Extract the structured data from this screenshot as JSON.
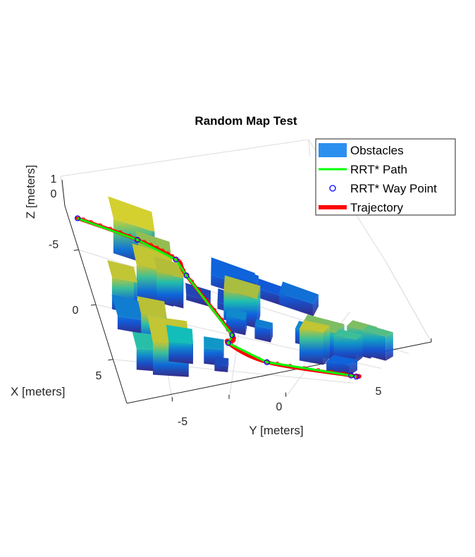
{
  "chart_data": {
    "type": "3d-scene",
    "title": "Random Map Test",
    "xlabel": "X [meters]",
    "ylabel": "Y [meters]",
    "zlabel": "Z [meters]",
    "x_ticks": [
      "-5",
      "0",
      "5"
    ],
    "y_ticks": [
      "-5",
      "0",
      "5"
    ],
    "z_ticks": [
      "1",
      "0"
    ],
    "grid": true,
    "legend_position": "top-right",
    "legend": [
      {
        "label": "Obstacles",
        "color": "#2b8ff0",
        "kind": "patch"
      },
      {
        "label": "RRT* Path",
        "color": "#00ff00",
        "kind": "line"
      },
      {
        "label": "RRT* Way Point",
        "color": "#0000ff",
        "kind": "circle"
      },
      {
        "label": "Trajectory",
        "color": "#ff0000",
        "kind": "thick-line"
      }
    ],
    "waypoints": [
      {
        "x": -8.2,
        "y": -8.5,
        "z": 0
      },
      {
        "x": -8.2,
        "y": -5.5,
        "z": 0
      },
      {
        "x": -7.5,
        "y": -3.6,
        "z": 0
      },
      {
        "x": -6.0,
        "y": -3.1,
        "z": 0
      },
      {
        "x": 0.0,
        "y": -0.4,
        "z": 0
      },
      {
        "x": 1.2,
        "y": -0.6,
        "z": 0
      },
      {
        "x": 3.0,
        "y": 2.2,
        "z": 0
      },
      {
        "x": 3.1,
        "y": 8.1,
        "z": 0
      },
      {
        "x": 3.2,
        "y": 8.5,
        "z": 0
      }
    ],
    "obstacles": [
      {
        "x": -8.0,
        "y": -7.0,
        "w": 2.2,
        "d": 2.2,
        "h": 5.2
      },
      {
        "x": -4.0,
        "y": -6.2,
        "w": 2.2,
        "d": 2.2,
        "h": 4.8
      },
      {
        "x": -3.5,
        "y": -5.0,
        "w": 1.6,
        "d": 1.6,
        "h": 4.5
      },
      {
        "x": -1.5,
        "y": -8.0,
        "w": 1.6,
        "d": 1.6,
        "h": 4.8
      },
      {
        "x": 0.0,
        "y": -8.0,
        "w": 2.0,
        "d": 2.0,
        "h": 2.0
      },
      {
        "x": 1.4,
        "y": -6.6,
        "w": 1.8,
        "d": 1.8,
        "h": 4.6
      },
      {
        "x": 3.4,
        "y": -6.2,
        "w": 2.8,
        "d": 2.8,
        "h": 4.8
      },
      {
        "x": 4.2,
        "y": -7.4,
        "w": 1.6,
        "d": 1.6,
        "h": 3.2
      },
      {
        "x": 2.8,
        "y": -4.8,
        "w": 1.8,
        "d": 1.8,
        "h": 3.0
      },
      {
        "x": -8.0,
        "y": -1.8,
        "w": 2.2,
        "d": 2.2,
        "h": 1.6
      },
      {
        "x": -7.8,
        "y": -0.6,
        "w": 1.2,
        "d": 1.2,
        "h": 1.6
      },
      {
        "x": -7.6,
        "y": 0.6,
        "w": 1.4,
        "d": 1.4,
        "h": 1.4
      },
      {
        "x": -8.0,
        "y": 1.8,
        "w": 1.8,
        "d": 1.8,
        "h": 1.8
      },
      {
        "x": -6.0,
        "y": -5.8,
        "w": 1.8,
        "d": 1.8,
        "h": 4.2
      },
      {
        "x": -5.0,
        "y": -5.5,
        "w": 0.8,
        "d": 0.8,
        "h": 2.5
      },
      {
        "x": -3.8,
        "y": -1.0,
        "w": 2.0,
        "d": 2.0,
        "h": 4.4
      },
      {
        "x": -1.6,
        "y": -0.8,
        "w": 1.2,
        "d": 1.2,
        "h": 2.2
      },
      {
        "x": -1.2,
        "y": 1.0,
        "w": 1.0,
        "d": 1.0,
        "h": 2.0
      },
      {
        "x": -1.8,
        "y": 4.0,
        "w": 2.2,
        "d": 2.2,
        "h": 4.0
      },
      {
        "x": -1.4,
        "y": 6.0,
        "w": 1.4,
        "d": 1.4,
        "h": 3.4
      },
      {
        "x": -2.4,
        "y": 3.4,
        "w": 1.4,
        "d": 1.4,
        "h": 2.2
      },
      {
        "x": 0.2,
        "y": 4.2,
        "w": 1.6,
        "d": 1.6,
        "h": 4.8
      },
      {
        "x": 1.8,
        "y": -5.6,
        "w": 1.4,
        "d": 1.4,
        "h": 0.8
      },
      {
        "x": 1.6,
        "y": 6.4,
        "w": 1.6,
        "d": 1.6,
        "h": 1.6
      },
      {
        "x": -4.4,
        "y": -3.2,
        "w": 1.4,
        "d": 1.4,
        "h": 0.8
      },
      {
        "x": -4.8,
        "y": -1.4,
        "w": 1.8,
        "d": 1.8,
        "h": 1.0
      },
      {
        "x": -3.2,
        "y": 4.8,
        "w": 0.8,
        "d": 0.8,
        "h": 2.6
      },
      {
        "x": -3.0,
        "y": 6.4,
        "w": 1.4,
        "d": 1.4,
        "h": 4.0
      },
      {
        "x": -3.4,
        "y": 7.2,
        "w": 1.4,
        "d": 1.4,
        "h": 3.6
      },
      {
        "x": 0.5,
        "y": 6.4,
        "w": 0.6,
        "d": 0.6,
        "h": 0.6
      },
      {
        "x": 3.0,
        "y": -2.2,
        "w": 1.4,
        "d": 1.4,
        "h": 2.4
      },
      {
        "x": 4.2,
        "y": -1.4,
        "w": 1.0,
        "d": 1.0,
        "h": 1.0
      }
    ]
  }
}
